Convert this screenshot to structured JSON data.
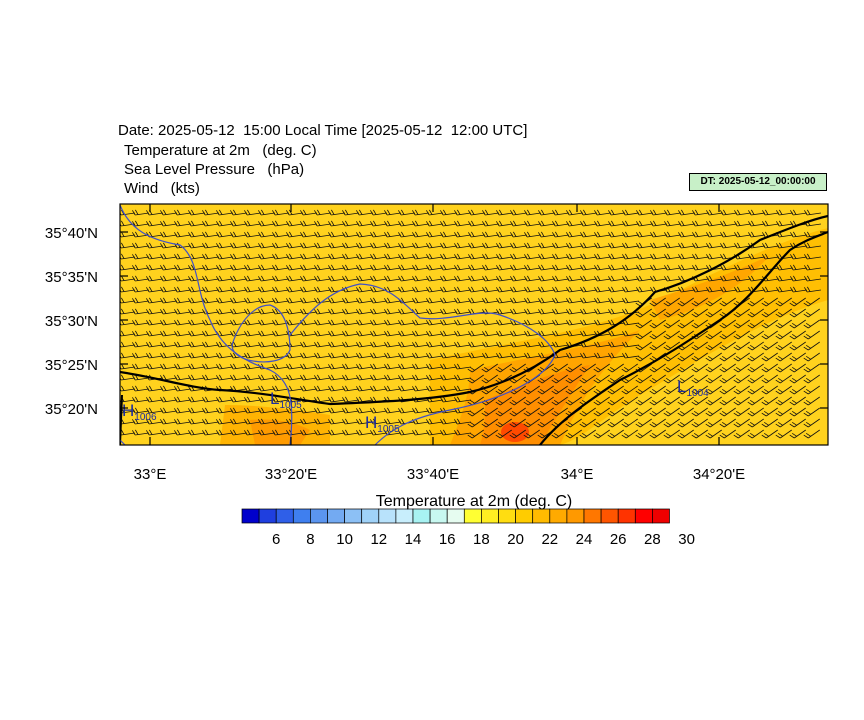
{
  "header": {
    "title": "Date: 2025-05-12  15:00 Local Time [2025-05-12  12:00 UTC]",
    "line1": "Temperature at 2m   (deg. C)",
    "line2": "Sea Level Pressure   (hPa)",
    "line3": "Wind   (kts)",
    "dt_badge": "DT: 2025-05-12_00:00:00"
  },
  "map": {
    "lat_labels": [
      "35°40'N",
      "35°35'N",
      "35°30'N",
      "35°25'N",
      "35°20'N"
    ],
    "lon_labels": [
      "33°E",
      "33°20'E",
      "33°40'E",
      "34°E",
      "34°20'E"
    ],
    "pressure_labels": [
      {
        "kind": "H",
        "value": "1006"
      },
      {
        "kind": "L",
        "value": "1005"
      },
      {
        "kind": "H",
        "value": "1005"
      },
      {
        "kind": "L",
        "value": "1004"
      }
    ]
  },
  "colorbar": {
    "title": "Temperature at 2m  (deg. C)",
    "colors": [
      "#0000cc",
      "#1f3fdf",
      "#2f5fe8",
      "#3f7fef",
      "#5b95ef",
      "#73aaf2",
      "#8cc0f5",
      "#a0d2f8",
      "#b8e2fb",
      "#c8eefc",
      "#a8f2f2",
      "#c8f8f0",
      "#e6fcf0",
      "#ffff33",
      "#ffee22",
      "#ffdd11",
      "#ffcc00",
      "#ffbb00",
      "#ffaa00",
      "#ff9900",
      "#ff7700",
      "#ff5500",
      "#ff3300",
      "#ff0000",
      "#ee0000"
    ],
    "tick_labels": [
      "6",
      "8",
      "10",
      "12",
      "14",
      "16",
      "18",
      "20",
      "22",
      "24",
      "26",
      "28",
      "30"
    ]
  }
}
